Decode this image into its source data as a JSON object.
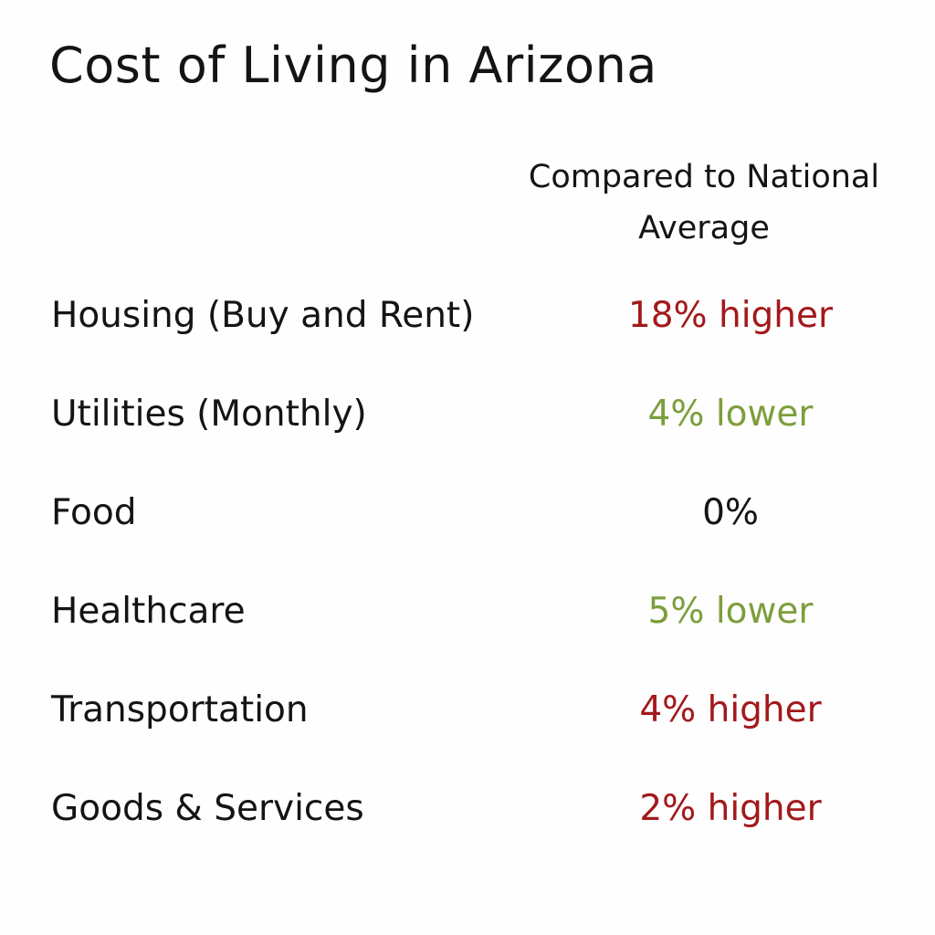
{
  "title": "Cost of Living in Arizona",
  "column_header": "Compared to National\nAverage",
  "colors": {
    "higher": "#a3191b",
    "lower": "#7d9e3c",
    "neutral": "#141414"
  },
  "rows": [
    {
      "label": "Housing (Buy and Rent)",
      "value": "18% higher",
      "trend": "higher"
    },
    {
      "label": "Utilities (Monthly)",
      "value": "4% lower",
      "trend": "lower"
    },
    {
      "label": "Food",
      "value": "0%",
      "trend": "neutral"
    },
    {
      "label": "Healthcare",
      "value": "5% lower",
      "trend": "lower"
    },
    {
      "label": "Transportation",
      "value": "4% higher",
      "trend": "higher"
    },
    {
      "label": "Goods & Services",
      "value": "2% higher",
      "trend": "higher"
    }
  ]
}
